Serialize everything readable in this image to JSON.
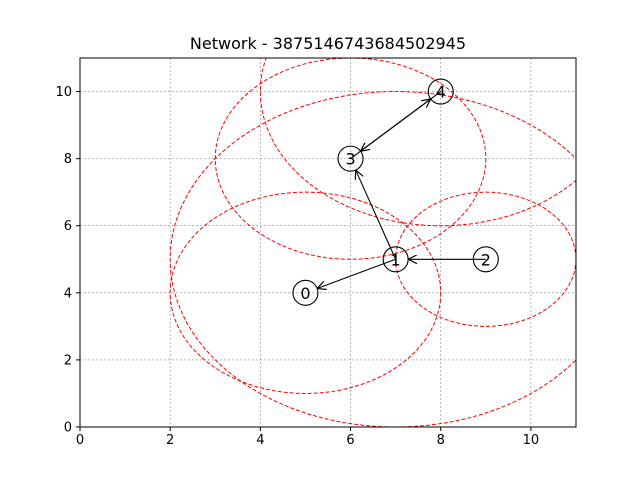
{
  "chart_data": {
    "type": "network",
    "title": "Network - 3875146743684502945",
    "xlim": [
      0,
      11
    ],
    "ylim": [
      0,
      11
    ],
    "x_ticks": [
      0,
      2,
      4,
      6,
      8,
      10
    ],
    "y_ticks": [
      0,
      2,
      4,
      6,
      8,
      10
    ],
    "grid": true,
    "nodes": [
      {
        "id": "0",
        "x": 5,
        "y": 4,
        "range": 3
      },
      {
        "id": "1",
        "x": 7,
        "y": 5,
        "range": 5
      },
      {
        "id": "2",
        "x": 9,
        "y": 5,
        "range": 2
      },
      {
        "id": "3",
        "x": 6,
        "y": 8,
        "range": 3
      },
      {
        "id": "4",
        "x": 8,
        "y": 10,
        "range": 4
      }
    ],
    "edges": [
      {
        "from": "1",
        "to": "0"
      },
      {
        "from": "1",
        "to": "3"
      },
      {
        "from": "2",
        "to": "1"
      },
      {
        "from": "3",
        "to": "4"
      },
      {
        "from": "4",
        "to": "3"
      }
    ],
    "colors": {
      "range_circle": "#ff0000",
      "grid": "#888888",
      "edge": "#000000",
      "node_edge": "#000000",
      "node_fill": "#ffffff"
    }
  }
}
